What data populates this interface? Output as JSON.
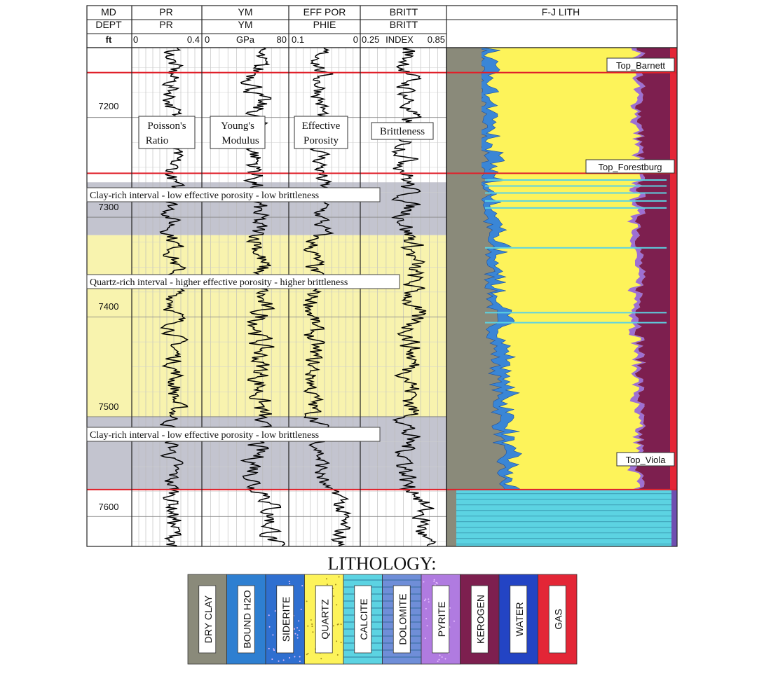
{
  "chart_data": {
    "type": "well-log",
    "depth_track": {
      "header": [
        "MD",
        "DEPT",
        "ft"
      ],
      "ticks": [
        7200,
        7300,
        7400,
        7500,
        7600
      ],
      "range": [
        7130,
        7650
      ]
    },
    "tracks": [
      {
        "key": "pr",
        "name": "PR",
        "mnemonic": "PR",
        "scale_left": "0",
        "scale_mid": "",
        "scale_right": "0.4",
        "range": [
          0,
          0.4
        ],
        "label": [
          "Poisson's",
          "Ratio"
        ]
      },
      {
        "key": "ym",
        "name": "YM",
        "mnemonic": "YM",
        "scale_left": "0",
        "scale_mid": "GPa",
        "scale_right": "80",
        "range": [
          0,
          80
        ],
        "label": [
          "Young's",
          "Modulus"
        ]
      },
      {
        "key": "phie",
        "name": "EFF POR",
        "mnemonic": "PHIE",
        "scale_left": "0.1",
        "scale_mid": "",
        "scale_right": "0",
        "range": [
          0.1,
          0
        ],
        "label": [
          "Effective",
          "Porosity"
        ]
      },
      {
        "key": "britt",
        "name": "BRITT",
        "mnemonic": "BRITT",
        "scale_left": "0.25",
        "scale_mid": "INDEX",
        "scale_right": "0.85",
        "range": [
          0.25,
          0.85
        ],
        "label": [
          "Brittleness"
        ]
      }
    ],
    "lith_track": {
      "name": "F-J LITH"
    },
    "formation_tops": [
      {
        "name": "Top_Barnett",
        "depth": 7155
      },
      {
        "name": "Top_Forestburg",
        "depth": 7256
      },
      {
        "name": "Top_Viola",
        "depth": 7573
      }
    ],
    "intervals": [
      {
        "type": "clay",
        "top": 7265,
        "base": 7318,
        "label": "Clay-rich interval - low effective porosity - low brittleness"
      },
      {
        "type": "quartz",
        "top": 7318,
        "base": 7500,
        "label": "Quartz-rich interval - higher effective porosity - higher brittleness"
      },
      {
        "type": "clay",
        "top": 7500,
        "base": 7573,
        "label": "Clay-rich interval - low effective porosity - low brittleness"
      }
    ],
    "depth_markers": [
      7200,
      7300,
      7400,
      7500,
      7600
    ]
  },
  "legend": {
    "title": "LITHOLOGY:",
    "items": [
      {
        "label": "DRY CLAY",
        "color": "#8a8a7a",
        "icon": "dry-clay"
      },
      {
        "label": "BOUND H2O",
        "color": "#2e7fd1",
        "icon": "bound-water"
      },
      {
        "label": "SIDERITE",
        "color": "#2f6fd0",
        "icon": "siderite"
      },
      {
        "label": "QUARTZ",
        "color": "#fdf35a",
        "icon": "quartz"
      },
      {
        "label": "CALCITE",
        "color": "#5cd3e2",
        "icon": "calcite"
      },
      {
        "label": "DOLOMITE",
        "color": "#6f8ed8",
        "icon": "dolomite"
      },
      {
        "label": "PYRITE",
        "color": "#b07be0",
        "icon": "pyrite"
      },
      {
        "label": "KEROGEN",
        "color": "#7d1f4f",
        "icon": "kerogen"
      },
      {
        "label": "WATER",
        "color": "#2344c4",
        "icon": "water"
      },
      {
        "label": "GAS",
        "color": "#e32636",
        "icon": "gas"
      }
    ]
  }
}
